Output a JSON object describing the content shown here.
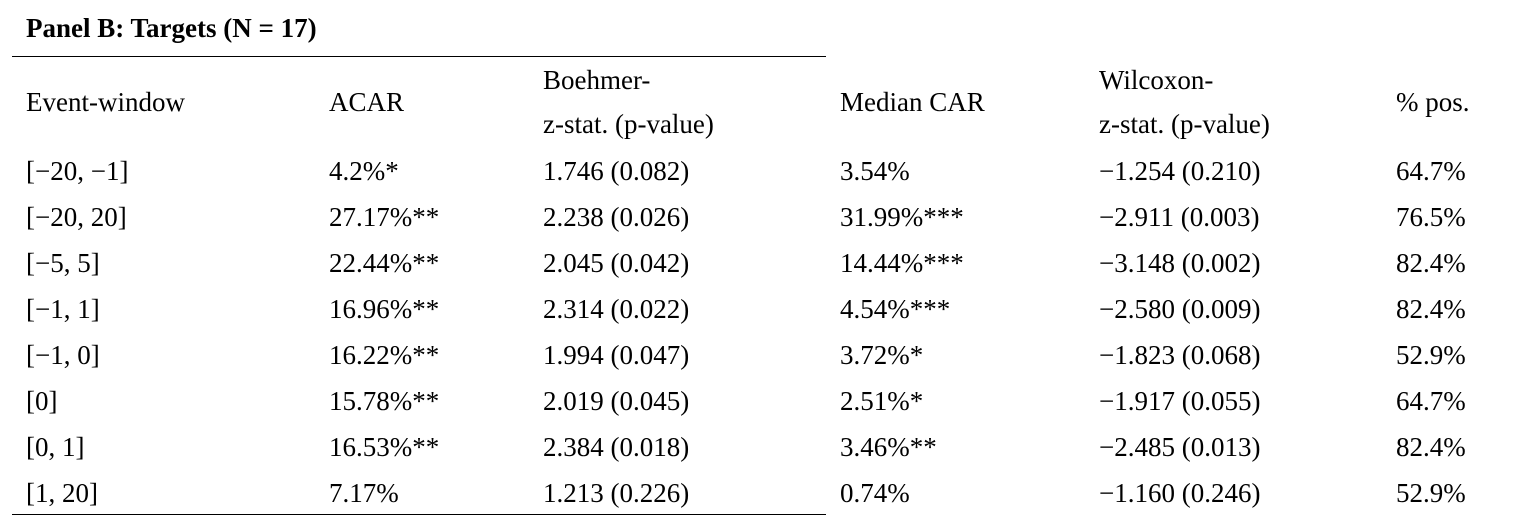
{
  "panel_title": "Panel B: Targets (N = 17)",
  "headers": {
    "event_window": "Event-window",
    "acar": "ACAR",
    "boehmer_line1": "Boehmer-",
    "boehmer_line2": "z-stat. (p-value)",
    "median_car": "Median CAR",
    "wilcoxon_line1": "Wilcoxon-",
    "wilcoxon_line2": "z-stat. (p-value)",
    "pct_pos": "% pos."
  },
  "rows": [
    [
      "[−20, −1]",
      "4.2%*",
      "1.746 (0.082)",
      "3.54%",
      "−1.254 (0.210)",
      "64.7%"
    ],
    [
      "[−20, 20]",
      "27.17%**",
      "2.238 (0.026)",
      "31.99%***",
      "−2.911 (0.003)",
      "76.5%"
    ],
    [
      "[−5, 5]",
      "22.44%**",
      "2.045 (0.042)",
      "14.44%***",
      "−3.148 (0.002)",
      "82.4%"
    ],
    [
      "[−1, 1]",
      "16.96%**",
      "2.314 (0.022)",
      "4.54%***",
      "−2.580 (0.009)",
      "82.4%"
    ],
    [
      "[−1, 0]",
      "16.22%**",
      "1.994 (0.047)",
      "3.72%*",
      "−1.823 (0.068)",
      "52.9%"
    ],
    [
      "[0]",
      "15.78%**",
      "2.019 (0.045)",
      "2.51%*",
      "−1.917 (0.055)",
      "64.7%"
    ],
    [
      "[0, 1]",
      "16.53%**",
      "2.384 (0.018)",
      "3.46%**",
      "−2.485 (0.013)",
      "82.4%"
    ],
    [
      "[1, 20]",
      "7.17%",
      "1.213 (0.226)",
      "0.74%",
      "−1.160 (0.246)",
      "52.9%"
    ]
  ]
}
